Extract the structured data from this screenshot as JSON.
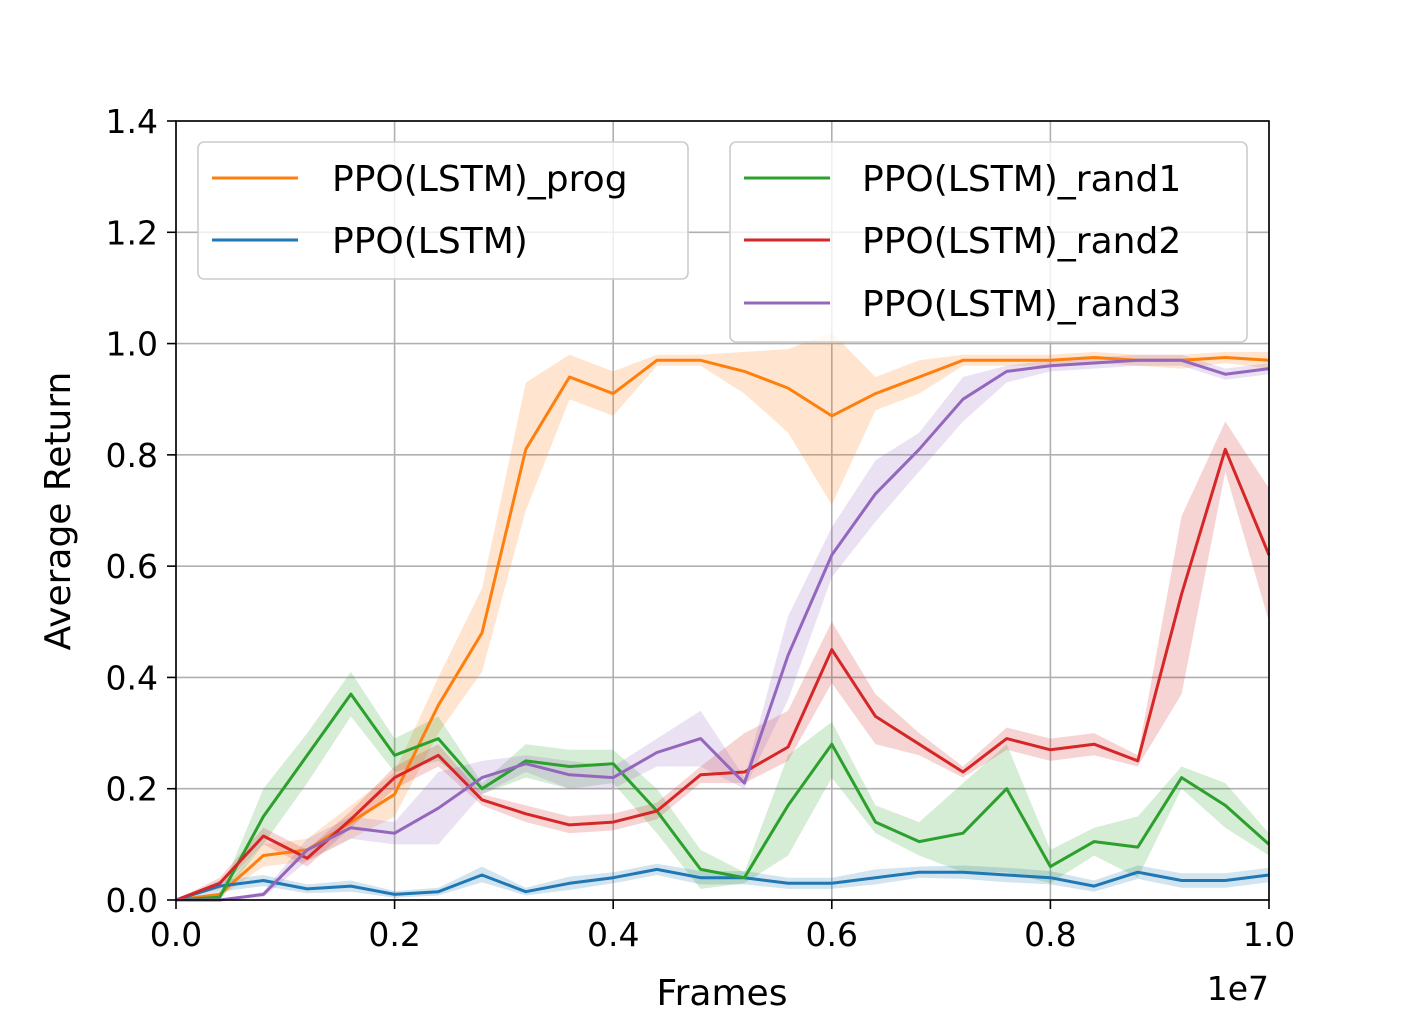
{
  "chart_data": {
    "type": "line",
    "xlabel": "Frames",
    "ylabel": "Average Return",
    "x_offset_text": "1e7",
    "xlim": [
      0.0,
      1.0
    ],
    "ylim": [
      0.0,
      1.4
    ],
    "xticks": [
      "0.0",
      "0.2",
      "0.4",
      "0.6",
      "0.8",
      "1.0"
    ],
    "yticks": [
      "0.0",
      "0.2",
      "0.4",
      "0.6",
      "0.8",
      "1.0",
      "1.2",
      "1.4"
    ],
    "grid": true,
    "x": [
      0.0,
      0.04,
      0.08,
      0.12,
      0.16,
      0.2,
      0.24,
      0.28,
      0.32,
      0.36,
      0.4,
      0.44,
      0.48,
      0.52,
      0.56,
      0.6,
      0.64,
      0.68,
      0.72,
      0.76,
      0.8,
      0.84,
      0.88,
      0.92,
      0.96,
      1.0
    ],
    "series": [
      {
        "name": "PPO(LSTM)_prog",
        "color": "#ff7f0e",
        "values": [
          0.0,
          0.01,
          0.08,
          0.09,
          0.14,
          0.19,
          0.35,
          0.48,
          0.81,
          0.94,
          0.91,
          0.97,
          0.97,
          0.95,
          0.92,
          0.87,
          0.91,
          0.94,
          0.97,
          0.97,
          0.97,
          0.975,
          0.97,
          0.97,
          0.975,
          0.97
        ],
        "lower": [
          0.0,
          0.005,
          0.06,
          0.07,
          0.11,
          0.15,
          0.3,
          0.41,
          0.7,
          0.9,
          0.87,
          0.96,
          0.96,
          0.91,
          0.84,
          0.71,
          0.88,
          0.91,
          0.96,
          0.96,
          0.96,
          0.965,
          0.96,
          0.955,
          0.965,
          0.955
        ],
        "upper": [
          0.0,
          0.015,
          0.1,
          0.11,
          0.17,
          0.23,
          0.4,
          0.56,
          0.93,
          0.98,
          0.95,
          0.98,
          0.98,
          0.985,
          0.99,
          1.02,
          0.94,
          0.97,
          0.98,
          0.98,
          0.98,
          0.985,
          0.98,
          0.98,
          0.985,
          0.985
        ]
      },
      {
        "name": "PPO(LSTM)",
        "color": "#1f77b4",
        "values": [
          0.0,
          0.025,
          0.035,
          0.02,
          0.025,
          0.01,
          0.015,
          0.045,
          0.015,
          0.03,
          0.04,
          0.055,
          0.04,
          0.04,
          0.03,
          0.03,
          0.04,
          0.05,
          0.05,
          0.045,
          0.04,
          0.025,
          0.05,
          0.035,
          0.035,
          0.045
        ],
        "lower": [
          0.0,
          0.015,
          0.025,
          0.012,
          0.015,
          0.004,
          0.008,
          0.032,
          0.008,
          0.018,
          0.03,
          0.045,
          0.028,
          0.028,
          0.02,
          0.02,
          0.028,
          0.04,
          0.038,
          0.032,
          0.028,
          0.015,
          0.038,
          0.022,
          0.022,
          0.032
        ],
        "upper": [
          0.0,
          0.035,
          0.045,
          0.028,
          0.035,
          0.016,
          0.022,
          0.06,
          0.022,
          0.042,
          0.05,
          0.065,
          0.052,
          0.052,
          0.04,
          0.04,
          0.055,
          0.06,
          0.062,
          0.058,
          0.052,
          0.035,
          0.062,
          0.048,
          0.048,
          0.058
        ]
      },
      {
        "name": "PPO(LSTM)_rand1",
        "color": "#2ca02c",
        "values": [
          0.0,
          0.005,
          0.15,
          0.26,
          0.37,
          0.26,
          0.29,
          0.2,
          0.25,
          0.24,
          0.245,
          0.16,
          0.055,
          0.04,
          0.17,
          0.28,
          0.14,
          0.105,
          0.12,
          0.2,
          0.06,
          0.105,
          0.095,
          0.22,
          0.17,
          0.1
        ],
        "lower": [
          0.0,
          0.0,
          0.1,
          0.21,
          0.33,
          0.23,
          0.25,
          0.19,
          0.22,
          0.2,
          0.21,
          0.12,
          0.02,
          0.03,
          0.08,
          0.22,
          0.12,
          0.08,
          0.05,
          0.05,
          0.03,
          0.08,
          0.04,
          0.2,
          0.13,
          0.08
        ],
        "upper": [
          0.0,
          0.01,
          0.2,
          0.3,
          0.41,
          0.29,
          0.33,
          0.21,
          0.28,
          0.27,
          0.27,
          0.2,
          0.09,
          0.05,
          0.26,
          0.32,
          0.17,
          0.14,
          0.21,
          0.28,
          0.09,
          0.13,
          0.15,
          0.24,
          0.21,
          0.12
        ]
      },
      {
        "name": "PPO(LSTM)_rand2",
        "color": "#d62728",
        "values": [
          0.0,
          0.03,
          0.115,
          0.075,
          0.145,
          0.22,
          0.26,
          0.18,
          0.155,
          0.135,
          0.14,
          0.16,
          0.225,
          0.23,
          0.275,
          0.45,
          0.33,
          0.28,
          0.23,
          0.29,
          0.27,
          0.28,
          0.25,
          0.55,
          0.81,
          0.62
        ],
        "lower": [
          0.0,
          0.02,
          0.1,
          0.06,
          0.13,
          0.2,
          0.24,
          0.17,
          0.14,
          0.12,
          0.125,
          0.145,
          0.21,
          0.21,
          0.25,
          0.39,
          0.28,
          0.26,
          0.22,
          0.27,
          0.25,
          0.26,
          0.24,
          0.37,
          0.77,
          0.5
        ],
        "upper": [
          0.0,
          0.04,
          0.13,
          0.09,
          0.16,
          0.24,
          0.28,
          0.19,
          0.17,
          0.15,
          0.155,
          0.175,
          0.24,
          0.3,
          0.34,
          0.5,
          0.37,
          0.3,
          0.24,
          0.31,
          0.29,
          0.3,
          0.26,
          0.69,
          0.86,
          0.74
        ]
      },
      {
        "name": "PPO(LSTM)_rand3",
        "color": "#9467bd",
        "values": [
          0.0,
          0.0,
          0.01,
          0.09,
          0.13,
          0.12,
          0.165,
          0.22,
          0.245,
          0.225,
          0.22,
          0.265,
          0.29,
          0.21,
          0.44,
          0.62,
          0.73,
          0.81,
          0.9,
          0.95,
          0.96,
          0.965,
          0.97,
          0.97,
          0.945,
          0.955
        ],
        "lower": [
          0.0,
          0.0,
          0.005,
          0.07,
          0.11,
          0.1,
          0.1,
          0.19,
          0.23,
          0.2,
          0.2,
          0.24,
          0.24,
          0.2,
          0.36,
          0.58,
          0.68,
          0.77,
          0.86,
          0.93,
          0.95,
          0.955,
          0.96,
          0.96,
          0.935,
          0.945
        ],
        "upper": [
          0.0,
          0.0,
          0.015,
          0.11,
          0.15,
          0.14,
          0.23,
          0.25,
          0.26,
          0.25,
          0.24,
          0.29,
          0.34,
          0.22,
          0.51,
          0.67,
          0.79,
          0.84,
          0.94,
          0.96,
          0.97,
          0.975,
          0.98,
          0.98,
          0.955,
          0.965
        ]
      }
    ],
    "legends": [
      {
        "position": "top-left",
        "entries": [
          "PPO(LSTM)_prog",
          "PPO(LSTM)"
        ]
      },
      {
        "position": "top-right",
        "entries": [
          "PPO(LSTM)_rand1",
          "PPO(LSTM)_rand2",
          "PPO(LSTM)_rand3"
        ]
      }
    ]
  }
}
